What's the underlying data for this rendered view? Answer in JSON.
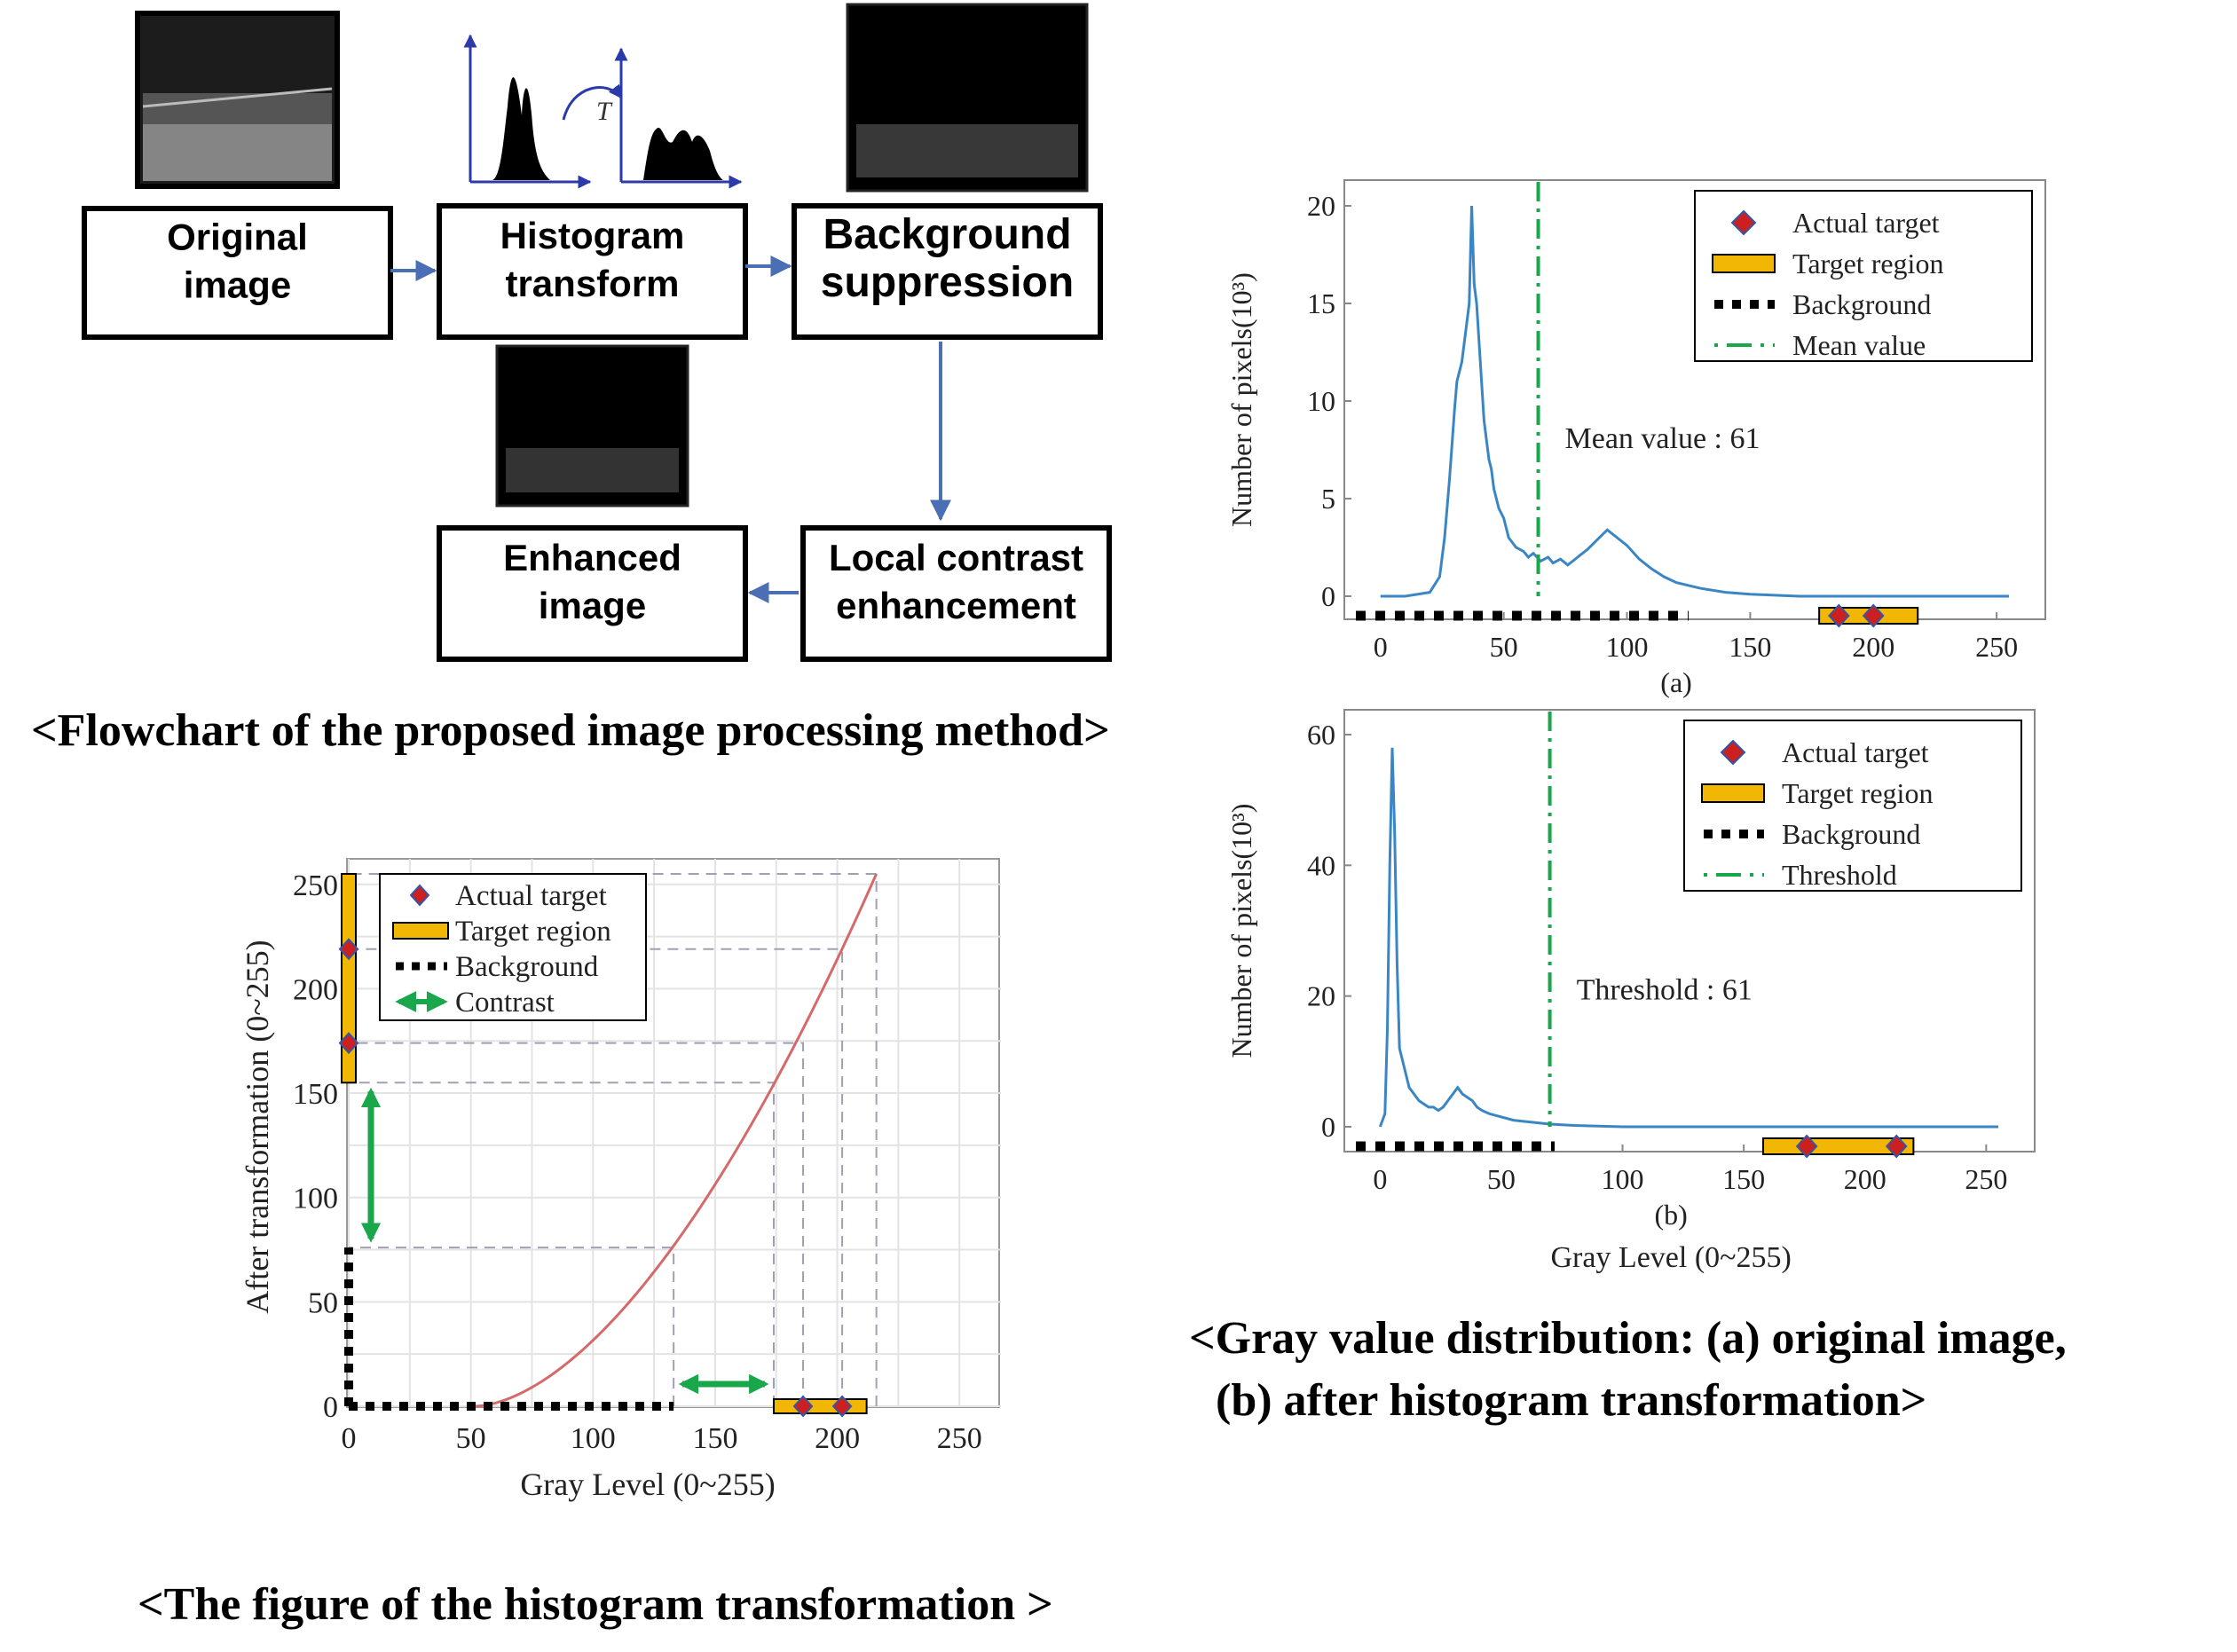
{
  "flowchart": {
    "caption": "<Flowchart of the proposed image processing method>",
    "boxes": [
      {
        "id": "original",
        "lines": [
          "Original",
          "image"
        ]
      },
      {
        "id": "hist",
        "lines": [
          "Histogram",
          "transform"
        ]
      },
      {
        "id": "bgsup",
        "lines": [
          "Background",
          "suppression"
        ]
      },
      {
        "id": "lce",
        "lines": [
          "Local contrast",
          "enhancement"
        ]
      },
      {
        "id": "enh",
        "lines": [
          "Enhanced",
          "image"
        ]
      }
    ],
    "transform_symbol": "T"
  },
  "colors": {
    "box_border": "#000000",
    "arrow": "#4a6fb5",
    "histogram_line": "#3a86c4",
    "mean_line": "#1aa64a",
    "target_fill": "#f2b705",
    "target_marker": "#cc1f1f",
    "marker_edge": "#3355aa",
    "curve": "#d46a6a",
    "contrast_arrow": "#1aa64a",
    "grid": "#e3e3e3",
    "dash": "#a0a0b4"
  },
  "icons": [
    "original-image-thumbnail",
    "histogram-before-icon",
    "histogram-after-icon",
    "transform-arc-icon",
    "background-suppression-thumbnail",
    "enhanced-image-thumbnail"
  ],
  "chart_data": [
    {
      "id": "a",
      "type": "line",
      "panel_label": "(a)",
      "xlabel": "",
      "ylabel": "Number of pixels(10³)",
      "xlim": [
        -10,
        255
      ],
      "ylim": [
        0,
        20
      ],
      "x_ticks": [
        "0",
        "50",
        "100",
        "150",
        "200",
        "250"
      ],
      "y_ticks": [
        "0",
        "5",
        "10",
        "15",
        "20"
      ],
      "series": [
        {
          "name": "",
          "x": [
            0,
            10,
            20,
            24,
            26,
            28,
            30,
            31,
            32,
            33,
            34,
            35,
            36,
            37,
            38,
            39,
            40,
            41,
            42,
            43,
            44,
            45,
            46,
            48,
            50,
            52,
            55,
            58,
            60,
            62,
            65,
            68,
            70,
            73,
            76,
            80,
            84,
            88,
            92,
            96,
            100,
            105,
            110,
            115,
            120,
            130,
            140,
            150,
            160,
            170,
            180,
            200,
            220,
            240,
            255
          ],
          "y": [
            0,
            0,
            0.2,
            1,
            3,
            6,
            9.5,
            11,
            11.5,
            12,
            13,
            14,
            15,
            20,
            16,
            15,
            13,
            11,
            9,
            8,
            7,
            6.5,
            5.5,
            4.5,
            4,
            3,
            2.5,
            2.3,
            2,
            2.2,
            1.8,
            2,
            1.7,
            1.9,
            1.6,
            2,
            2.4,
            2.9,
            3.4,
            3,
            2.6,
            1.9,
            1.4,
            1,
            0.7,
            0.4,
            0.2,
            0.1,
            0.05,
            0,
            0,
            0,
            0,
            0,
            0
          ]
        }
      ],
      "mean_value_label": "Mean value : 61",
      "mean_x": 64,
      "background_range": [
        -10,
        125
      ],
      "target_region": [
        178,
        218
      ],
      "actual_targets": [
        186,
        200
      ],
      "legend": [
        "Actual target",
        "Target region",
        "Background",
        "Mean value"
      ],
      "legend_placement": "top-right",
      "grid": false
    },
    {
      "id": "b",
      "type": "line",
      "panel_label": "(b)",
      "xlabel": "Gray Level (0~255)",
      "ylabel": "Number of pixels(10³)",
      "xlim": [
        -10,
        255
      ],
      "ylim": [
        0,
        60
      ],
      "x_ticks": [
        "0",
        "50",
        "100",
        "150",
        "200",
        "250"
      ],
      "y_ticks": [
        "0",
        "20",
        "40",
        "60"
      ],
      "series": [
        {
          "name": "",
          "x": [
            0,
            2,
            3,
            4,
            5,
            6,
            7,
            8,
            10,
            12,
            14,
            16,
            18,
            20,
            22,
            24,
            26,
            28,
            30,
            32,
            34,
            36,
            38,
            40,
            42,
            45,
            50,
            55,
            60,
            70,
            80,
            100,
            150,
            200,
            255
          ],
          "y": [
            0,
            2,
            15,
            40,
            58,
            45,
            25,
            12,
            9,
            6,
            5,
            4,
            3.5,
            3,
            3,
            2.5,
            3,
            4,
            5,
            6,
            5,
            4.5,
            4,
            3,
            2.5,
            2,
            1.5,
            1,
            0.8,
            0.4,
            0.2,
            0,
            0,
            0,
            0
          ]
        }
      ],
      "threshold_label": "Threshold : 61",
      "threshold_x": 70,
      "background_range": [
        -10,
        72
      ],
      "target_region": [
        158,
        220
      ],
      "actual_targets": [
        176,
        213
      ],
      "legend": [
        "Actual target",
        "Target region",
        "Background",
        "Threshold"
      ],
      "legend_placement": "top-right",
      "grid": false
    },
    {
      "id": "c",
      "type": "line",
      "xlabel": "Gray Level (0~255)",
      "ylabel": "After transformation (0~255)",
      "xlim": [
        0,
        255
      ],
      "ylim": [
        0,
        255
      ],
      "x_ticks": [
        "0",
        "50",
        "100",
        "150",
        "200",
        "250"
      ],
      "y_ticks": [
        "0",
        "50",
        "100",
        "150",
        "200",
        "250"
      ],
      "curve_start": 52,
      "curve_end": [
        216,
        255
      ],
      "background_x_range": [
        0,
        133
      ],
      "background_y_range": [
        0,
        76
      ],
      "target_region_x": [
        174,
        212
      ],
      "target_region_y": [
        155,
        255
      ],
      "actual_targets_x": [
        186,
        202
      ],
      "actual_targets_y": [
        174,
        219
      ],
      "contrast_x": [
        133,
        174
      ],
      "contrast_y": [
        76,
        155
      ],
      "legend": [
        "Actual target",
        "Target region",
        "Background",
        "Contrast"
      ],
      "legend_placement": "top-left",
      "grid": true
    }
  ],
  "captions": {
    "transform": "<The figure of the histogram transformation >",
    "gray_line1": "<Gray value distribution: (a) original image,",
    "gray_line2": "(b) after histogram transformation>"
  }
}
